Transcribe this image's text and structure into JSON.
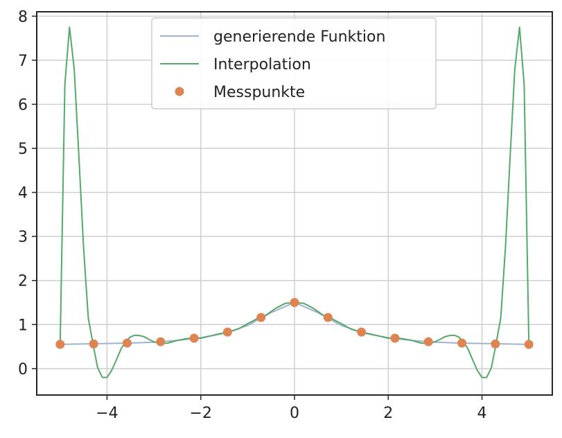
{
  "chart_data": {
    "type": "line",
    "title": "",
    "xlabel": "",
    "ylabel": "",
    "xlim": [
      -5.5,
      5.5
    ],
    "ylim": [
      -0.6,
      8.1
    ],
    "xticks": [
      -4,
      -2,
      0,
      2,
      4
    ],
    "xtick_labels": [
      "−4",
      "−2",
      "0",
      "2",
      "4"
    ],
    "yticks": [
      0,
      1,
      2,
      3,
      4,
      5,
      6,
      7,
      8
    ],
    "ytick_labels": [
      "0",
      "1",
      "2",
      "3",
      "4",
      "5",
      "6",
      "7",
      "8"
    ],
    "grid": true,
    "legend_position": "top-center",
    "series": [
      {
        "name": "generierende Funktion",
        "kind": "line",
        "color": "#9db3d1",
        "x": [
          -5.0,
          -4.5,
          -4.0,
          -3.5,
          -3.0,
          -2.5,
          -2.0,
          -1.5,
          -1.0,
          -0.5,
          0.0,
          0.5,
          1.0,
          1.5,
          2.0,
          2.5,
          3.0,
          3.5,
          4.0,
          4.5,
          5.0
        ],
        "y": [
          0.55,
          0.56,
          0.57,
          0.58,
          0.6,
          0.64,
          0.7,
          0.8,
          0.98,
          1.27,
          1.5,
          1.27,
          0.98,
          0.8,
          0.7,
          0.64,
          0.6,
          0.58,
          0.57,
          0.56,
          0.55
        ]
      },
      {
        "name": "Interpolation",
        "kind": "line",
        "color": "#55a868",
        "x": [
          -5.0,
          -4.9,
          -4.8,
          -4.7,
          -4.6,
          -4.5,
          -4.4,
          -4.3,
          -4.2,
          -4.1,
          -4.0,
          -3.9,
          -3.8,
          -3.7,
          -3.6,
          -3.5,
          -3.4,
          -3.3,
          -3.2,
          -3.1,
          -3.0,
          -2.9,
          -2.8,
          -2.7,
          -2.6,
          -2.5,
          -2.4,
          -2.3,
          -2.2,
          -2.1,
          -2.0,
          -1.8,
          -1.6,
          -1.4,
          -1.2,
          -1.0,
          -0.8,
          -0.7,
          -0.6,
          -0.4,
          -0.2,
          0.0,
          0.2,
          0.4,
          0.6,
          0.7,
          0.8,
          1.0,
          1.2,
          1.4,
          1.6,
          1.8,
          2.0,
          2.1,
          2.2,
          2.3,
          2.4,
          2.5,
          2.6,
          2.7,
          2.8,
          2.9,
          3.0,
          3.1,
          3.2,
          3.3,
          3.4,
          3.5,
          3.6,
          3.7,
          3.8,
          3.9,
          4.0,
          4.1,
          4.2,
          4.3,
          4.4,
          4.5,
          4.6,
          4.7,
          4.8,
          4.9,
          5.0
        ],
        "y": [
          0.55,
          6.45,
          7.75,
          6.8,
          4.8,
          2.75,
          1.15,
          0.56,
          0.02,
          -0.2,
          -0.2,
          -0.04,
          0.2,
          0.45,
          0.62,
          0.72,
          0.76,
          0.75,
          0.72,
          0.66,
          0.61,
          0.58,
          0.57,
          0.58,
          0.61,
          0.64,
          0.66,
          0.68,
          0.69,
          0.69,
          0.69,
          0.74,
          0.79,
          0.83,
          0.9,
          1.02,
          1.13,
          1.16,
          1.22,
          1.37,
          1.48,
          1.5,
          1.48,
          1.37,
          1.22,
          1.16,
          1.13,
          1.02,
          0.9,
          0.83,
          0.79,
          0.74,
          0.69,
          0.69,
          0.69,
          0.68,
          0.66,
          0.64,
          0.61,
          0.58,
          0.57,
          0.58,
          0.61,
          0.66,
          0.72,
          0.75,
          0.76,
          0.72,
          0.62,
          0.45,
          0.2,
          -0.04,
          -0.2,
          -0.2,
          0.02,
          0.56,
          1.15,
          2.75,
          4.8,
          6.8,
          7.75,
          6.45,
          0.55
        ]
      },
      {
        "name": "Messpunkte",
        "kind": "scatter",
        "color": "#dd8452",
        "x": [
          -5.0,
          -4.2857,
          -3.5714,
          -2.8571,
          -2.1429,
          -1.4286,
          -0.7143,
          0.0,
          0.7143,
          1.4286,
          2.1429,
          2.8571,
          3.5714,
          4.2857,
          5.0
        ],
        "y": [
          0.55,
          0.56,
          0.58,
          0.61,
          0.69,
          0.83,
          1.16,
          1.5,
          1.16,
          0.83,
          0.69,
          0.61,
          0.58,
          0.56,
          0.55
        ]
      }
    ]
  }
}
